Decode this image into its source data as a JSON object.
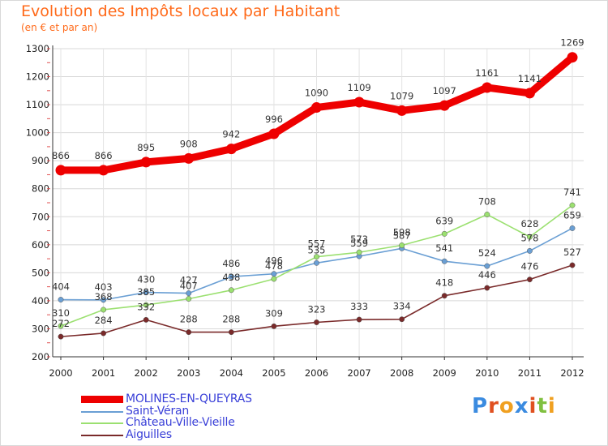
{
  "header": {
    "title": "Evolution des Impôts locaux par Habitant",
    "subtitle": "(en € et par an)"
  },
  "colors": {
    "title": "#ff6a1a",
    "legend_text": "#3a40d8",
    "molines": "#ee0000",
    "saint_veran": "#6a9fd4",
    "chateau": "#9be070",
    "aiguilles": "#7a2a2a"
  },
  "chart_data": {
    "type": "line",
    "title": "Evolution des Impôts locaux par Habitant",
    "subtitle": "(en € et par an)",
    "x": [
      "2000",
      "2001",
      "2002",
      "2003",
      "2004",
      "2005",
      "2006",
      "2007",
      "2008",
      "2009",
      "2010",
      "2011",
      "2012"
    ],
    "ylim": [
      200,
      1300
    ],
    "yticks": [
      200,
      300,
      400,
      500,
      600,
      700,
      800,
      900,
      1000,
      1100,
      1200,
      1300
    ],
    "grid": true,
    "legend_position": "bottom-left",
    "series": [
      {
        "name": "MOLINES-EN-QUEYRAS",
        "color": "#ee0000",
        "values": [
          866,
          866,
          895,
          908,
          942,
          996,
          1090,
          1109,
          1079,
          1097,
          1161,
          1141,
          1269
        ]
      },
      {
        "name": "Saint-Véran",
        "color": "#6a9fd4",
        "values": [
          404,
          403,
          430,
          427,
          486,
          496,
          535,
          559,
          587,
          541,
          524,
          578,
          659
        ]
      },
      {
        "name": "Château-Ville-Vieille",
        "color": "#9be070",
        "values": [
          310,
          368,
          385,
          407,
          438,
          478,
          557,
          573,
          598,
          639,
          708,
          628,
          741
        ]
      },
      {
        "name": "Aiguilles",
        "color": "#7a2a2a",
        "values": [
          272,
          284,
          332,
          288,
          288,
          309,
          323,
          333,
          334,
          418,
          446,
          476,
          527
        ]
      }
    ]
  },
  "logo": {
    "letters": [
      "P",
      "r",
      "o",
      "x",
      "i",
      "t",
      "i"
    ],
    "colors": [
      "#3b8be0",
      "#e05020",
      "#f0a020",
      "#3b8be0",
      "#e05020",
      "#80c040",
      "#f0a020"
    ]
  }
}
